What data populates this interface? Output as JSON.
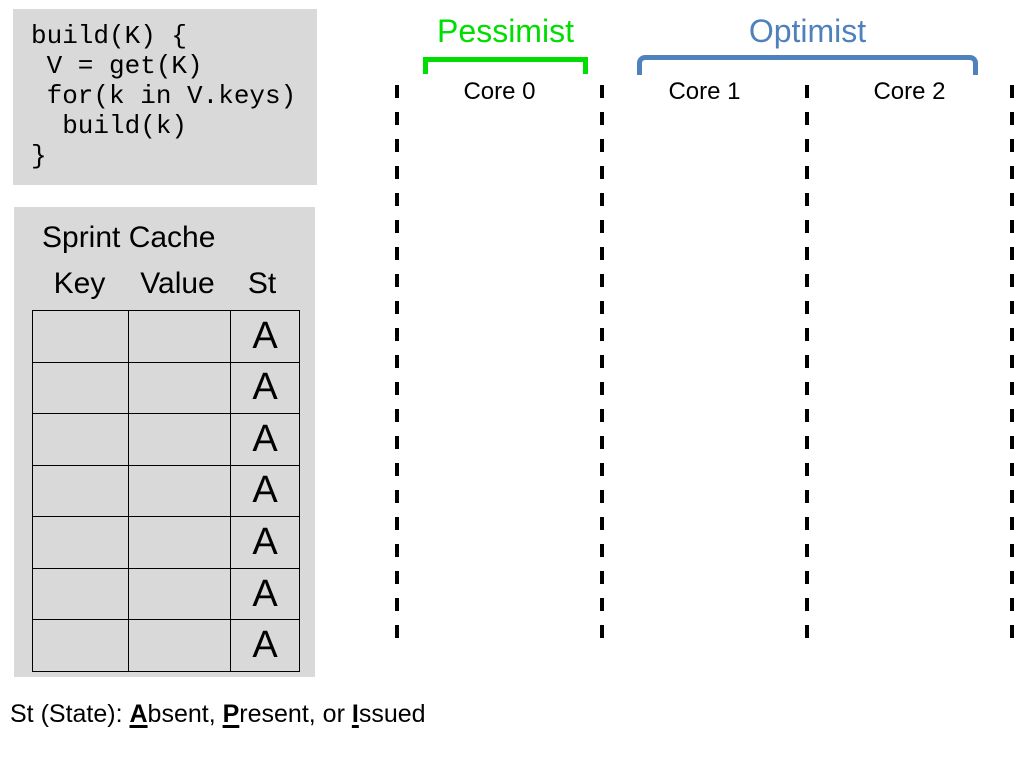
{
  "colors": {
    "panel_gray": "#d9d9d9",
    "pessimist_green": "#00DD00",
    "optimist_blue": "#4F81BD",
    "text_black": "#000000"
  },
  "code_box": {
    "lines": [
      "build(K) {",
      " V = get(K)",
      " for(k in V.keys)",
      "  build(k)",
      "}"
    ]
  },
  "cache": {
    "title": "Sprint Cache",
    "columns": [
      "Key",
      "Value",
      "St"
    ],
    "rows": [
      {
        "key": "",
        "value": "",
        "st": "A"
      },
      {
        "key": "",
        "value": "",
        "st": "A"
      },
      {
        "key": "",
        "value": "",
        "st": "A"
      },
      {
        "key": "",
        "value": "",
        "st": "A"
      },
      {
        "key": "",
        "value": "",
        "st": "A"
      },
      {
        "key": "",
        "value": "",
        "st": "A"
      },
      {
        "key": "",
        "value": "",
        "st": "A"
      }
    ]
  },
  "timeline": {
    "cores": [
      {
        "label": "Core 0"
      },
      {
        "label": "Core 1"
      },
      {
        "label": "Core 2"
      }
    ],
    "groups": [
      {
        "label": "Pessimist",
        "color": "#00DD00",
        "cores": [
          "Core 0"
        ]
      },
      {
        "label": "Optimist",
        "color": "#4F81BD",
        "cores": [
          "Core 1",
          "Core 2"
        ]
      }
    ]
  },
  "legend": {
    "segments": [
      {
        "text": "St (State): ",
        "emphasis": false
      },
      {
        "text": "A",
        "emphasis": true
      },
      {
        "text": "bsent, ",
        "emphasis": false
      },
      {
        "text": "P",
        "emphasis": true
      },
      {
        "text": "resent, or ",
        "emphasis": false
      },
      {
        "text": "I",
        "emphasis": true
      },
      {
        "text": "ssued",
        "emphasis": false
      }
    ]
  }
}
